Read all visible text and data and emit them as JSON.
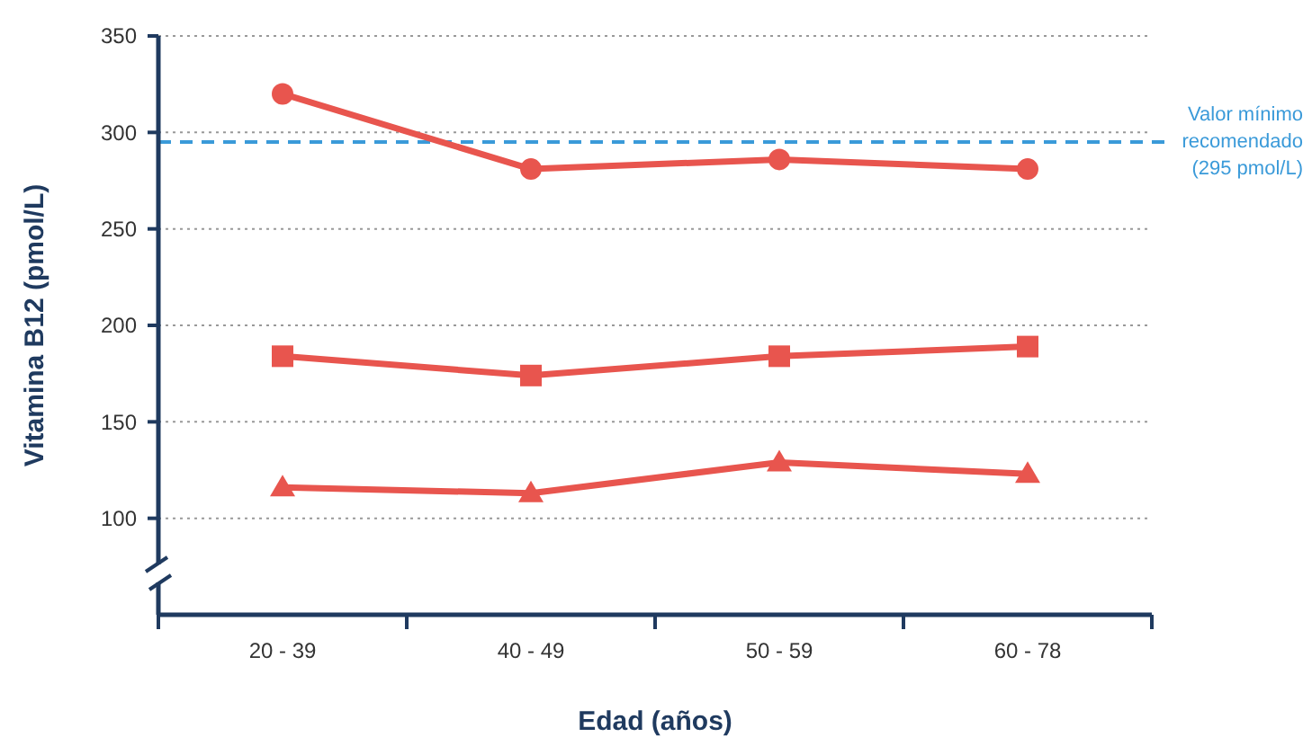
{
  "chart_data": {
    "type": "line",
    "xlabel": "Edad (años)",
    "ylabel": "Vitamina B12 (pmol/L)",
    "categories": [
      "20 - 39",
      "40 - 49",
      "50 - 59",
      "60 - 78"
    ],
    "series": [
      {
        "color": "#e8554e",
        "marker": "circle",
        "values": [
          320,
          281,
          286,
          281
        ]
      },
      {
        "color": "#e8554e",
        "marker": "square",
        "values": [
          184,
          174,
          184,
          189
        ]
      },
      {
        "color": "#e8554e",
        "marker": "triangle",
        "values": [
          116,
          113,
          129,
          123
        ]
      }
    ],
    "ylim": [
      50,
      350
    ],
    "yticks": [
      100,
      150,
      200,
      250,
      300,
      350
    ],
    "grid": "y",
    "ref_lines": [
      {
        "axis": "y",
        "value": 295,
        "label": "Valor mínimo recomendado (295 pmol/L)",
        "color": "#3a9ad9",
        "line_style": "dashed"
      }
    ]
  }
}
